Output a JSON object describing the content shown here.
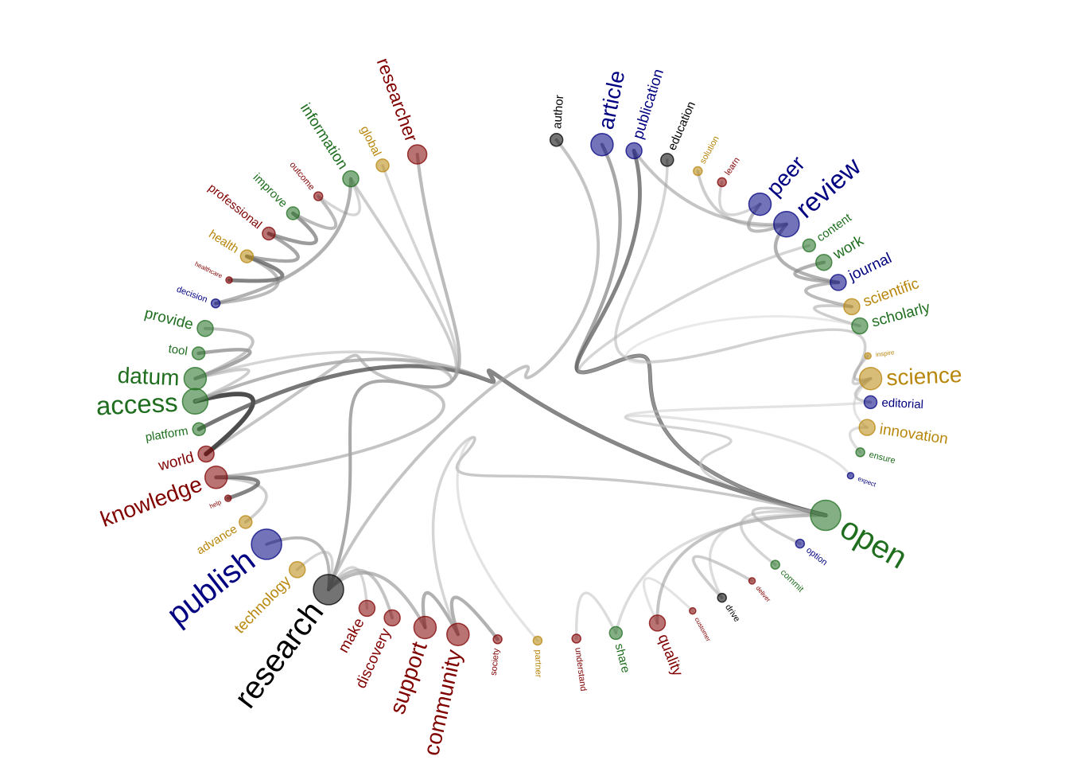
{
  "diagram": {
    "type": "hierarchical-edge-bundling-word-network",
    "palette": {
      "green": "#1f6e1f",
      "red": "#800000",
      "blue": "#000080",
      "gold": "#b8860b",
      "black": "#000000"
    },
    "nodes": [
      {
        "id": "author",
        "label": "author",
        "group": "black",
        "weight": 2
      },
      {
        "id": "article",
        "label": "article",
        "group": "blue",
        "weight": 5
      },
      {
        "id": "publication",
        "label": "publication",
        "group": "blue",
        "weight": 3
      },
      {
        "id": "education",
        "label": "education",
        "group": "black",
        "weight": 2
      },
      {
        "id": "solution",
        "label": "solution",
        "group": "gold",
        "weight": 1
      },
      {
        "id": "learn",
        "label": "learn",
        "group": "red",
        "weight": 1
      },
      {
        "id": "peer",
        "label": "peer",
        "group": "blue",
        "weight": 5
      },
      {
        "id": "review",
        "label": "review",
        "group": "blue",
        "weight": 6
      },
      {
        "id": "content",
        "label": "content",
        "group": "green",
        "weight": 2
      },
      {
        "id": "work",
        "label": "work",
        "group": "green",
        "weight": 3
      },
      {
        "id": "journal",
        "label": "journal",
        "group": "blue",
        "weight": 3
      },
      {
        "id": "scientific",
        "label": "scientific",
        "group": "gold",
        "weight": 3
      },
      {
        "id": "scholarly",
        "label": "scholarly",
        "group": "green",
        "weight": 3
      },
      {
        "id": "inspire",
        "label": "inspire",
        "group": "gold",
        "weight": 0
      },
      {
        "id": "science",
        "label": "science",
        "group": "gold",
        "weight": 5
      },
      {
        "id": "editorial",
        "label": "editorial",
        "group": "blue",
        "weight": 2
      },
      {
        "id": "innovation",
        "label": "innovation",
        "group": "gold",
        "weight": 3
      },
      {
        "id": "ensure",
        "label": "ensure",
        "group": "green",
        "weight": 1
      },
      {
        "id": "expect",
        "label": "expect",
        "group": "blue",
        "weight": 0
      },
      {
        "id": "open",
        "label": "open",
        "group": "green",
        "weight": 7
      },
      {
        "id": "option",
        "label": "option",
        "group": "blue",
        "weight": 1
      },
      {
        "id": "commit",
        "label": "commit",
        "group": "green",
        "weight": 1
      },
      {
        "id": "deliver",
        "label": "deliver",
        "group": "red",
        "weight": 0
      },
      {
        "id": "drive",
        "label": "drive",
        "group": "black",
        "weight": 1
      },
      {
        "id": "customer",
        "label": "customer",
        "group": "red",
        "weight": 0
      },
      {
        "id": "quality",
        "label": "quality",
        "group": "red",
        "weight": 3
      },
      {
        "id": "share",
        "label": "share",
        "group": "green",
        "weight": 2
      },
      {
        "id": "understand",
        "label": "understand",
        "group": "red",
        "weight": 1
      },
      {
        "id": "partner",
        "label": "partner",
        "group": "gold",
        "weight": 1
      },
      {
        "id": "society",
        "label": "society",
        "group": "red",
        "weight": 1
      },
      {
        "id": "community",
        "label": "community",
        "group": "red",
        "weight": 5
      },
      {
        "id": "support",
        "label": "support",
        "group": "red",
        "weight": 5
      },
      {
        "id": "discovery",
        "label": "discovery",
        "group": "red",
        "weight": 3
      },
      {
        "id": "make",
        "label": "make",
        "group": "red",
        "weight": 3
      },
      {
        "id": "research",
        "label": "research",
        "group": "black",
        "weight": 7
      },
      {
        "id": "technology",
        "label": "technology",
        "group": "gold",
        "weight": 3
      },
      {
        "id": "publish",
        "label": "publish",
        "group": "blue",
        "weight": 7
      },
      {
        "id": "advance",
        "label": "advance",
        "group": "gold",
        "weight": 2
      },
      {
        "id": "help",
        "label": "help",
        "group": "red",
        "weight": 0
      },
      {
        "id": "knowledge",
        "label": "knowledge",
        "group": "red",
        "weight": 5
      },
      {
        "id": "world",
        "label": "world",
        "group": "red",
        "weight": 3
      },
      {
        "id": "platform",
        "label": "platform",
        "group": "green",
        "weight": 2
      },
      {
        "id": "access",
        "label": "access",
        "group": "green",
        "weight": 6
      },
      {
        "id": "datum",
        "label": "datum",
        "group": "green",
        "weight": 5
      },
      {
        "id": "tool",
        "label": "tool",
        "group": "green",
        "weight": 2
      },
      {
        "id": "provide",
        "label": "provide",
        "group": "green",
        "weight": 3
      },
      {
        "id": "decision",
        "label": "decision",
        "group": "blue",
        "weight": 1
      },
      {
        "id": "healthcare",
        "label": "healthcare",
        "group": "red",
        "weight": 0
      },
      {
        "id": "health",
        "label": "health",
        "group": "gold",
        "weight": 2
      },
      {
        "id": "professional",
        "label": "professional",
        "group": "red",
        "weight": 2
      },
      {
        "id": "improve",
        "label": "improve",
        "group": "green",
        "weight": 2
      },
      {
        "id": "outcome",
        "label": "outcome",
        "group": "red",
        "weight": 1
      },
      {
        "id": "information",
        "label": "information",
        "group": "green",
        "weight": 3
      },
      {
        "id": "global",
        "label": "global",
        "group": "gold",
        "weight": 2
      },
      {
        "id": "researcher",
        "label": "researcher",
        "group": "red",
        "weight": 4
      }
    ],
    "edges": [
      [
        "article",
        "open",
        0.55
      ],
      [
        "publication",
        "open",
        0.7
      ],
      [
        "education",
        "science",
        0.3
      ],
      [
        "solution",
        "review",
        0.35
      ],
      [
        "learn",
        "peer",
        0.3
      ],
      [
        "peer",
        "review",
        0.45
      ],
      [
        "review",
        "journal",
        0.5
      ],
      [
        "content",
        "open",
        0.3
      ],
      [
        "work",
        "journal",
        0.5
      ],
      [
        "journal",
        "scientific",
        0.45
      ],
      [
        "scientific",
        "scholarly",
        0.35
      ],
      [
        "scholarly",
        "science",
        0.15
      ],
      [
        "inspire",
        "science",
        0.35
      ],
      [
        "science",
        "editorial",
        0.35
      ],
      [
        "editorial",
        "open",
        0.2
      ],
      [
        "innovation",
        "science",
        0.2
      ],
      [
        "ensure",
        "innovation",
        0.25
      ],
      [
        "expect",
        "open",
        0.2
      ],
      [
        "open",
        "option",
        0.35
      ],
      [
        "open",
        "commit",
        0.3
      ],
      [
        "deliver",
        "drive",
        0.35
      ],
      [
        "drive",
        "open",
        0.25
      ],
      [
        "customer",
        "quality",
        0.2
      ],
      [
        "quality",
        "open",
        0.4
      ],
      [
        "share",
        "open",
        0.25
      ],
      [
        "understand",
        "share",
        0.25
      ],
      [
        "partner",
        "open",
        0.2
      ],
      [
        "society",
        "community",
        0.5
      ],
      [
        "community",
        "support",
        0.5
      ],
      [
        "support",
        "research",
        0.45
      ],
      [
        "discovery",
        "research",
        0.4
      ],
      [
        "make",
        "research",
        0.3
      ],
      [
        "research",
        "publish",
        0.35
      ],
      [
        "technology",
        "research",
        0.3
      ],
      [
        "publish",
        "research",
        0.35
      ],
      [
        "advance",
        "knowledge",
        0.35
      ],
      [
        "help",
        "knowledge",
        0.7
      ],
      [
        "knowledge",
        "world",
        0.4
      ],
      [
        "world",
        "access",
        0.9
      ],
      [
        "platform",
        "open",
        0.75
      ],
      [
        "access",
        "open",
        0.45
      ],
      [
        "datum",
        "access",
        0.35
      ],
      [
        "tool",
        "datum",
        0.55
      ],
      [
        "provide",
        "datum",
        0.4
      ],
      [
        "decision",
        "health",
        0.45
      ],
      [
        "healthcare",
        "health",
        0.7
      ],
      [
        "health",
        "professional",
        0.55
      ],
      [
        "professional",
        "improve",
        0.6
      ],
      [
        "improve",
        "outcome",
        0.45
      ],
      [
        "outcome",
        "information",
        0.3
      ],
      [
        "information",
        "decision",
        0.5
      ],
      [
        "global",
        "research",
        0.3
      ],
      [
        "researcher",
        "research",
        0.45
      ],
      [
        "author",
        "research",
        0.4
      ],
      [
        "datum",
        "research",
        0.3
      ],
      [
        "access",
        "research",
        0.3
      ],
      [
        "publication",
        "review",
        0.4
      ],
      [
        "community",
        "open",
        0.3
      ],
      [
        "information",
        "research",
        0.35
      ]
    ]
  }
}
